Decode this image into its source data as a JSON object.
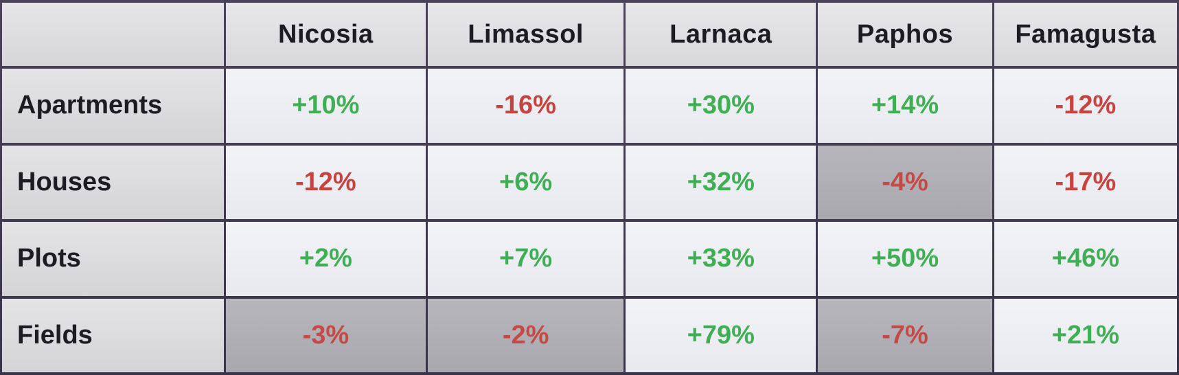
{
  "chart_data": {
    "type": "table",
    "columns": [
      "Nicosia",
      "Limassol",
      "Larnaca",
      "Paphos",
      "Famagusta"
    ],
    "rows": [
      {
        "label": "Apartments",
        "values": [
          "+10%",
          "-16%",
          "+30%",
          "+14%",
          "-12%"
        ],
        "shaded": [
          false,
          false,
          false,
          false,
          false
        ]
      },
      {
        "label": "Houses",
        "values": [
          "-12%",
          "+6%",
          "+32%",
          "-4%",
          "-17%"
        ],
        "shaded": [
          false,
          false,
          false,
          true,
          false
        ]
      },
      {
        "label": "Plots",
        "values": [
          "+2%",
          "+7%",
          "+33%",
          "+50%",
          "+46%"
        ],
        "shaded": [
          false,
          false,
          false,
          false,
          false
        ]
      },
      {
        "label": "Fields",
        "values": [
          "-3%",
          "-2%",
          "+79%",
          "-7%",
          "+21%"
        ],
        "shaded": [
          true,
          true,
          false,
          true,
          false
        ]
      }
    ],
    "colors": {
      "positive": "#3fae54",
      "negative": "#c7433f",
      "cell_background": "#eeeff3",
      "shaded_background": "#b0afb5",
      "header_background": "#dfdfe1",
      "border": "#3a3448"
    }
  }
}
